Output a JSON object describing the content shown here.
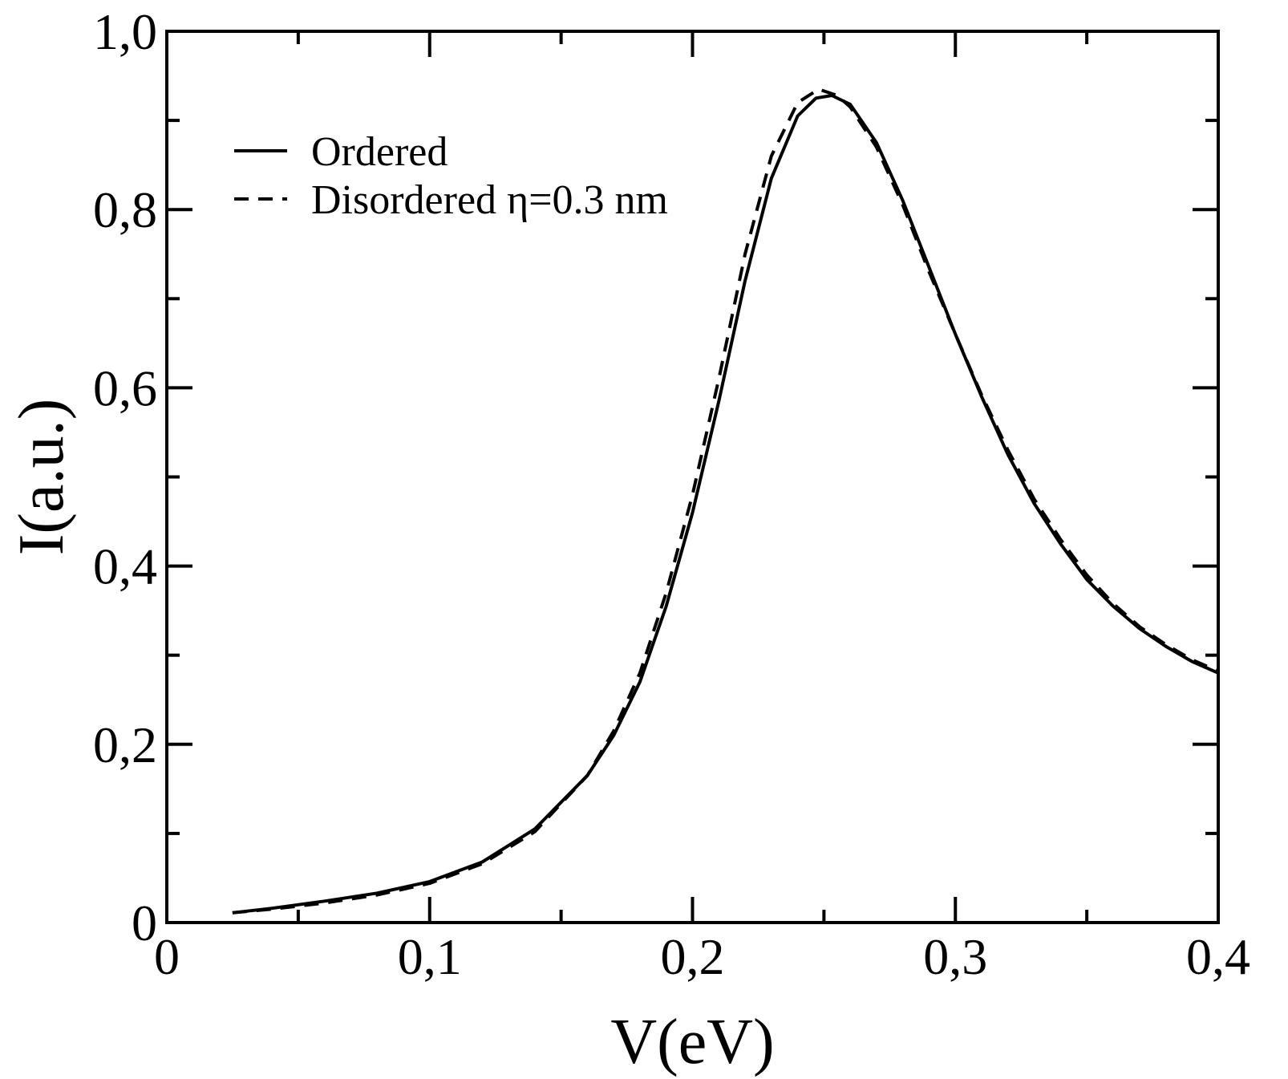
{
  "chart_data": {
    "type": "line",
    "title": "",
    "xlabel": "V(eV)",
    "ylabel": "I(a.u.)",
    "xlim": [
      0,
      0.4
    ],
    "ylim": [
      0,
      1.0
    ],
    "grid": false,
    "legend_position": "top-left",
    "x_ticks": [
      {
        "value": 0,
        "label": "0"
      },
      {
        "value": 0.1,
        "label": "0,1"
      },
      {
        "value": 0.2,
        "label": "0,2"
      },
      {
        "value": 0.3,
        "label": "0,3"
      },
      {
        "value": 0.4,
        "label": "0,4"
      }
    ],
    "y_ticks": [
      {
        "value": 0,
        "label": "0"
      },
      {
        "value": 0.2,
        "label": "0,2"
      },
      {
        "value": 0.4,
        "label": "0,4"
      },
      {
        "value": 0.6,
        "label": "0,6"
      },
      {
        "value": 0.8,
        "label": "0,8"
      },
      {
        "value": 1.0,
        "label": "1,0"
      }
    ],
    "x_minor_ticks": [
      0.05,
      0.15,
      0.25,
      0.35
    ],
    "y_minor_ticks": [
      0.1,
      0.3,
      0.5,
      0.7,
      0.9
    ],
    "series": [
      {
        "name": "Ordered",
        "style": "solid",
        "color": "#000000",
        "points": [
          [
            0.025,
            0.011
          ],
          [
            0.04,
            0.016
          ],
          [
            0.06,
            0.024
          ],
          [
            0.08,
            0.033
          ],
          [
            0.1,
            0.046
          ],
          [
            0.12,
            0.068
          ],
          [
            0.14,
            0.105
          ],
          [
            0.16,
            0.165
          ],
          [
            0.17,
            0.21
          ],
          [
            0.18,
            0.27
          ],
          [
            0.19,
            0.355
          ],
          [
            0.2,
            0.46
          ],
          [
            0.21,
            0.585
          ],
          [
            0.22,
            0.72
          ],
          [
            0.23,
            0.835
          ],
          [
            0.24,
            0.905
          ],
          [
            0.247,
            0.925
          ],
          [
            0.253,
            0.928
          ],
          [
            0.26,
            0.918
          ],
          [
            0.27,
            0.875
          ],
          [
            0.28,
            0.81
          ],
          [
            0.29,
            0.735
          ],
          [
            0.3,
            0.66
          ],
          [
            0.31,
            0.59
          ],
          [
            0.32,
            0.525
          ],
          [
            0.33,
            0.47
          ],
          [
            0.34,
            0.425
          ],
          [
            0.35,
            0.385
          ],
          [
            0.36,
            0.355
          ],
          [
            0.37,
            0.33
          ],
          [
            0.38,
            0.31
          ],
          [
            0.39,
            0.293
          ],
          [
            0.4,
            0.28
          ]
        ]
      },
      {
        "name": "Disordered η=0.3 nm",
        "style": "dashed",
        "color": "#000000",
        "points": [
          [
            0.025,
            0.011
          ],
          [
            0.04,
            0.015
          ],
          [
            0.06,
            0.022
          ],
          [
            0.08,
            0.031
          ],
          [
            0.1,
            0.044
          ],
          [
            0.12,
            0.066
          ],
          [
            0.14,
            0.102
          ],
          [
            0.16,
            0.165
          ],
          [
            0.17,
            0.215
          ],
          [
            0.18,
            0.28
          ],
          [
            0.19,
            0.37
          ],
          [
            0.2,
            0.48
          ],
          [
            0.21,
            0.61
          ],
          [
            0.22,
            0.75
          ],
          [
            0.23,
            0.86
          ],
          [
            0.24,
            0.92
          ],
          [
            0.248,
            0.935
          ],
          [
            0.255,
            0.928
          ],
          [
            0.26,
            0.915
          ],
          [
            0.27,
            0.87
          ],
          [
            0.28,
            0.805
          ],
          [
            0.29,
            0.73
          ],
          [
            0.3,
            0.66
          ],
          [
            0.31,
            0.592
          ],
          [
            0.32,
            0.53
          ],
          [
            0.33,
            0.475
          ],
          [
            0.34,
            0.43
          ],
          [
            0.35,
            0.39
          ],
          [
            0.36,
            0.358
          ],
          [
            0.37,
            0.332
          ],
          [
            0.38,
            0.312
          ],
          [
            0.39,
            0.295
          ],
          [
            0.4,
            0.282
          ]
        ]
      }
    ]
  }
}
